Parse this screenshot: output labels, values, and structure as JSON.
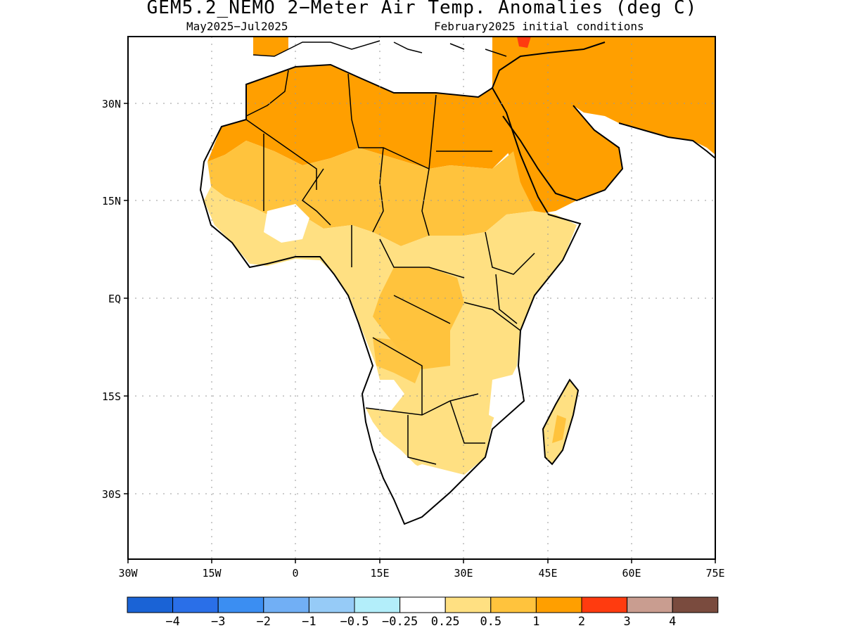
{
  "header": {
    "title": "GEM5.2_NEMO 2−Meter Air Temp. Anomalies (deg C)",
    "valid_period": "May2025−Jul2025",
    "init_conditions": "February2025 initial conditions"
  },
  "map": {
    "lon_labels": [
      "30W",
      "15W",
      "0",
      "15E",
      "30E",
      "45E",
      "60E",
      "75E"
    ],
    "lat_labels": [
      "30N",
      "15N",
      "EQ",
      "15S",
      "30S"
    ],
    "lon_range": [
      -30,
      75
    ],
    "lat_range": [
      -40,
      40
    ],
    "grid": "dotted",
    "coastline_color": "#000000"
  },
  "colorbar": {
    "colors": [
      "#1a63d6",
      "#2a6fe8",
      "#3b8ef2",
      "#71aff5",
      "#96cbf7",
      "#b3eefa",
      "#ffffff",
      "#ffe082",
      "#ffc33d",
      "#ff9f00",
      "#ff3b0f",
      "#c99d90",
      "#7a4b3e"
    ],
    "labels": [
      "−4",
      "−3",
      "−2",
      "−1",
      "−0.5",
      "−0.25",
      "0.25",
      "0.5",
      "1",
      "2",
      "3",
      "4"
    ]
  }
}
